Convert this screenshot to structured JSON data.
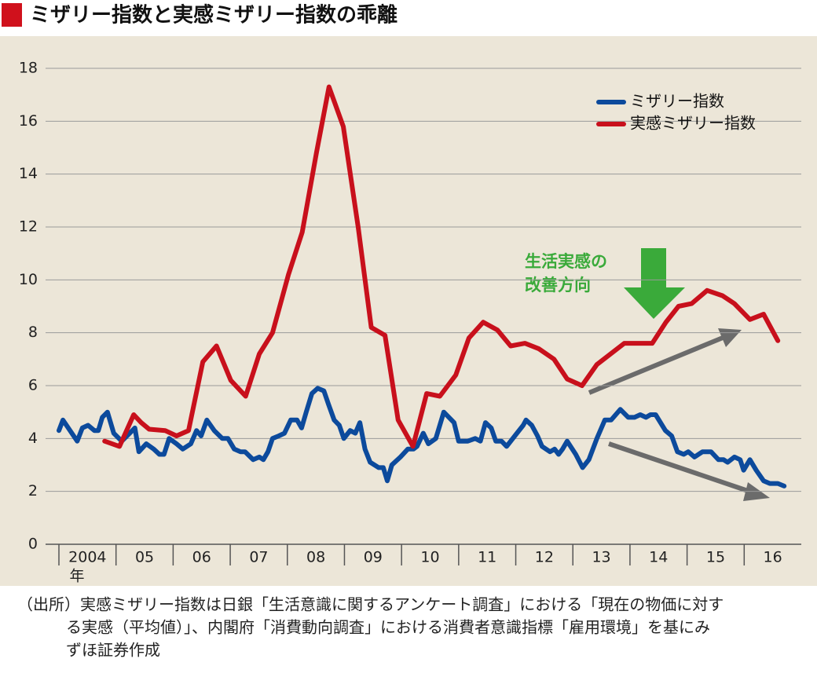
{
  "chart_data": {
    "type": "line",
    "title": "ミザリー指数と実感ミザリー指数の乖離",
    "xlim": [
      2004,
      2017
    ],
    "xticks": [
      {
        "value": 2004,
        "label": "2004"
      },
      {
        "value": 2005,
        "label": "05"
      },
      {
        "value": 2006,
        "label": "06"
      },
      {
        "value": 2007,
        "label": "07"
      },
      {
        "value": 2008,
        "label": "08"
      },
      {
        "value": 2009,
        "label": "09"
      },
      {
        "value": 2010,
        "label": "10"
      },
      {
        "value": 2011,
        "label": "11"
      },
      {
        "value": 2012,
        "label": "12"
      },
      {
        "value": 2013,
        "label": "13"
      },
      {
        "value": 2014,
        "label": "14"
      },
      {
        "value": 2015,
        "label": "15"
      },
      {
        "value": 2016,
        "label": "16"
      }
    ],
    "x_unit": "年",
    "ylim": [
      0,
      18
    ],
    "yticks": [
      0,
      2,
      4,
      6,
      8,
      10,
      12,
      14,
      16,
      18
    ],
    "grid": true,
    "legend": "upper right",
    "series": [
      {
        "name": "ミザリー指数",
        "color": "#0c4a9c",
        "x": [
          2004.0,
          2004.07,
          2004.32,
          2004.41,
          2004.51,
          2004.62,
          2004.69,
          2004.76,
          2004.85,
          2004.96,
          2005.1,
          2005.24,
          2005.33,
          2005.4,
          2005.53,
          2005.66,
          2005.76,
          2005.84,
          2005.93,
          2006.06,
          2006.17,
          2006.31,
          2006.41,
          2006.49,
          2006.59,
          2006.72,
          2006.86,
          2006.96,
          2007.07,
          2007.18,
          2007.26,
          2007.4,
          2007.51,
          2007.58,
          2007.66,
          2007.74,
          2007.85,
          2007.95,
          2008.06,
          2008.17,
          2008.25,
          2008.33,
          2008.43,
          2008.53,
          2008.64,
          2008.72,
          2008.82,
          2008.91,
          2008.99,
          2009.1,
          2009.19,
          2009.27,
          2009.36,
          2009.45,
          2009.6,
          2009.68,
          2009.75,
          2009.83,
          2009.98,
          2010.11,
          2010.21,
          2010.27,
          2010.38,
          2010.47,
          2010.6,
          2010.74,
          2010.92,
          2011.0,
          2011.16,
          2011.29,
          2011.38,
          2011.47,
          2011.57,
          2011.65,
          2011.75,
          2011.84,
          2012.02,
          2012.13,
          2012.18,
          2012.28,
          2012.38,
          2012.46,
          2012.6,
          2012.68,
          2012.75,
          2012.82,
          2012.9,
          2013.05,
          2013.17,
          2013.28,
          2013.42,
          2013.56,
          2013.67,
          2013.83,
          2013.97,
          2014.08,
          2014.18,
          2014.28,
          2014.36,
          2014.45,
          2014.62,
          2014.73,
          2014.83,
          2014.94,
          2015.02,
          2015.13,
          2015.27,
          2015.42,
          2015.55,
          2015.64,
          2015.71,
          2015.83,
          2015.93,
          2015.99,
          2016.1,
          2016.21,
          2016.34,
          2016.45,
          2016.59,
          2016.7
        ],
        "values": [
          4.3,
          4.7,
          3.9,
          4.4,
          4.5,
          4.3,
          4.3,
          4.8,
          5.0,
          4.2,
          3.9,
          4.2,
          4.4,
          3.5,
          3.8,
          3.6,
          3.4,
          3.4,
          4.0,
          3.8,
          3.6,
          3.8,
          4.3,
          4.1,
          4.7,
          4.3,
          4.0,
          4.0,
          3.6,
          3.5,
          3.5,
          3.2,
          3.3,
          3.2,
          3.5,
          4.0,
          4.1,
          4.2,
          4.7,
          4.7,
          4.4,
          5.0,
          5.7,
          5.9,
          5.8,
          5.3,
          4.7,
          4.5,
          4.0,
          4.3,
          4.2,
          4.6,
          3.6,
          3.1,
          2.9,
          2.9,
          2.4,
          3.0,
          3.3,
          3.6,
          3.6,
          3.7,
          4.2,
          3.8,
          4.0,
          5.0,
          4.6,
          3.9,
          3.9,
          4.0,
          3.9,
          4.6,
          4.4,
          3.9,
          3.9,
          3.7,
          4.2,
          4.5,
          4.7,
          4.5,
          4.1,
          3.7,
          3.5,
          3.6,
          3.4,
          3.6,
          3.9,
          3.4,
          2.9,
          3.2,
          4.0,
          4.7,
          4.7,
          5.1,
          4.8,
          4.8,
          4.9,
          4.8,
          4.9,
          4.9,
          4.3,
          4.1,
          3.5,
          3.4,
          3.5,
          3.3,
          3.5,
          3.5,
          3.2,
          3.2,
          3.1,
          3.3,
          3.2,
          2.8,
          3.2,
          2.8,
          2.4,
          2.3,
          2.3,
          2.2
        ]
      },
      {
        "name": "実感ミザリー指数",
        "color": "#c8101c",
        "x": [
          2004.8,
          2005.06,
          2005.31,
          2005.44,
          2005.58,
          2005.86,
          2006.06,
          2006.27,
          2006.52,
          2006.76,
          2007.01,
          2007.27,
          2007.51,
          2007.74,
          2008.02,
          2008.26,
          2008.51,
          2008.73,
          2008.98,
          2009.24,
          2009.47,
          2009.71,
          2009.94,
          2010.2,
          2010.44,
          2010.67,
          2010.95,
          2011.18,
          2011.43,
          2011.68,
          2011.91,
          2012.16,
          2012.4,
          2012.67,
          2012.9,
          2013.16,
          2013.42,
          2013.9,
          2014.39,
          2014.63,
          2014.85,
          2015.08,
          2015.35,
          2015.62,
          2015.83,
          2016.1,
          2016.34,
          2016.59
        ],
        "values": [
          3.9,
          3.7,
          4.9,
          4.6,
          4.35,
          4.3,
          4.1,
          4.3,
          6.9,
          7.5,
          6.2,
          5.6,
          7.2,
          8.0,
          10.2,
          11.8,
          14.8,
          17.3,
          15.8,
          12.0,
          8.2,
          7.9,
          4.7,
          3.7,
          5.7,
          5.6,
          6.4,
          7.8,
          8.4,
          8.1,
          7.5,
          7.6,
          7.4,
          7.0,
          6.25,
          6.0,
          6.8,
          7.6,
          7.6,
          8.4,
          9.0,
          9.1,
          9.6,
          9.4,
          9.1,
          8.5,
          8.7,
          7.7
        ]
      }
    ],
    "annotation": [
      "生活実感の",
      "改善方向"
    ],
    "source": [
      "（出所）実感ミザリー指数は日銀「生活意識に関するアンケート調査」における「現在の物価に対す",
      "る実感（平均値）」、内閣府「消費動向調査」における消費者意識指標「雇用環境」を基にみ",
      "ずほ証券作成"
    ]
  }
}
